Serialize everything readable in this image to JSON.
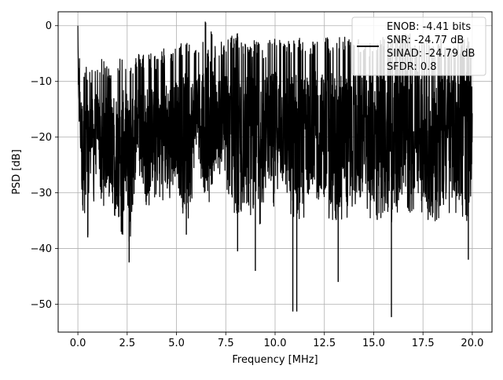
{
  "chart_data": {
    "type": "line",
    "title": "",
    "xlabel": "Frequency [MHz]",
    "ylabel": "PSD [dB]",
    "xlim": [
      -1.0,
      21.0
    ],
    "ylim": [
      -55.0,
      2.5
    ],
    "xticks": [
      0.0,
      2.5,
      5.0,
      7.5,
      10.0,
      12.5,
      15.0,
      17.5,
      20.0
    ],
    "xtick_labels": [
      "0.0",
      "2.5",
      "5.0",
      "7.5",
      "10.0",
      "12.5",
      "15.0",
      "17.5",
      "20.0"
    ],
    "yticks": [
      0,
      -10,
      -20,
      -30,
      -40,
      -50
    ],
    "ytick_labels": [
      "0",
      "−10",
      "−20",
      "−30",
      "−40",
      "−50"
    ],
    "grid": true,
    "legend_placement": "top-right",
    "series": [
      {
        "color": "#000000",
        "description_of_shape": "dense noisy spectrum",
        "x": [
          0.0,
          0.02,
          0.05,
          0.1,
          0.15,
          0.2,
          0.3,
          0.4,
          0.5,
          0.6,
          0.7,
          0.8,
          1.0,
          1.2,
          1.5,
          2.0,
          2.2,
          2.5,
          2.6,
          3.0,
          3.5,
          4.0,
          4.5,
          5.0,
          5.5,
          6.0,
          6.6,
          7.0,
          7.5,
          8.1,
          8.5,
          9.0,
          9.5,
          10.0,
          10.5,
          10.9,
          11.1,
          11.5,
          12.0,
          12.5,
          13.2,
          13.8,
          14.5,
          15.0,
          15.5,
          15.9,
          16.5,
          17.0,
          17.5,
          18.0,
          18.5,
          19.0,
          19.5,
          19.8,
          20.0
        ],
        "y": [
          0.0,
          -6.0,
          -12.0,
          -18.0,
          -22.0,
          -30.0,
          -34.0,
          -28.0,
          -38.0,
          -25.0,
          -20.0,
          -30.0,
          -18.0,
          -34.0,
          -27.0,
          -32.0,
          -37.0,
          -25.0,
          -42.5,
          -22.0,
          -30.0,
          -26.0,
          -29.0,
          -24.0,
          -37.5,
          -21.0,
          -29.0,
          -22.0,
          -25.0,
          -40.5,
          -27.0,
          -44.0,
          -25.0,
          -29.0,
          -27.0,
          -51.3,
          -51.3,
          -28.0,
          -26.0,
          -30.0,
          -46.0,
          -30.0,
          -27.0,
          -33.0,
          -30.0,
          -52.3,
          -33.0,
          -29.0,
          -30.0,
          -36.0,
          -33.0,
          -30.0,
          -32.0,
          -42.0,
          -20.0
        ],
        "upper_envelope_y": [
          0.0,
          -4.0,
          -6.0,
          -8.0,
          -9.0,
          -10.0,
          -11.0,
          -10.0,
          -11.0,
          -10.0,
          -11.0,
          -9.0,
          -10.0,
          -9.0,
          -10.0,
          -9.0,
          -8.0,
          -9.0,
          -10.0,
          -8.0,
          -7.5,
          -8.0,
          -6.5,
          -7.0,
          -5.0,
          -6.0,
          -0.7,
          -7.0,
          -5.0,
          -4.0,
          -6.0,
          -5.5,
          -6.0,
          -4.5,
          -6.0,
          -5.0,
          -4.5,
          -6.0,
          -5.0,
          -5.0,
          -5.0,
          -4.5,
          -6.0,
          -5.5,
          -5.0,
          -5.5,
          -3.0,
          -5.0,
          -5.0,
          -5.5,
          -5.0,
          -5.5,
          -5.0,
          -5.0,
          -8.0
        ]
      }
    ],
    "legend": {
      "lines": [
        "ENOB: -4.41 bits",
        "SNR: -24.77 dB",
        "SINAD: -24.79 dB",
        "SFDR: 0.8"
      ]
    }
  }
}
